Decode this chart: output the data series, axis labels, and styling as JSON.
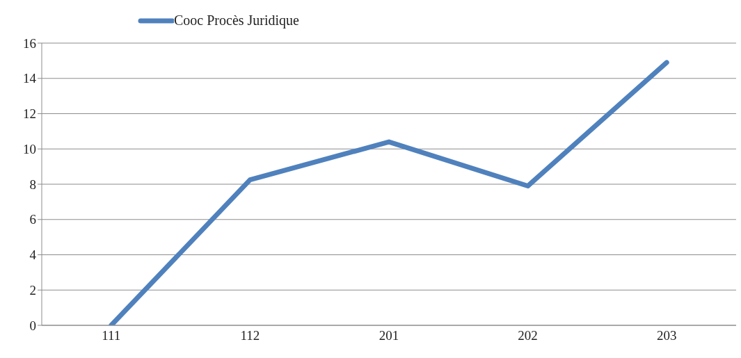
{
  "chart_data": {
    "type": "line",
    "categories": [
      "111",
      "112",
      "201",
      "202",
      "203"
    ],
    "series": [
      {
        "name": "Cooc Procès Juridique",
        "color": "#4f81bd",
        "values": [
          0,
          8.25,
          10.4,
          7.9,
          14.9
        ]
      }
    ],
    "ylim": [
      0,
      16
    ],
    "yticks": [
      0,
      2,
      4,
      6,
      8,
      10,
      12,
      14,
      16
    ],
    "grid": "y",
    "legend": "top left",
    "marker": "none"
  }
}
